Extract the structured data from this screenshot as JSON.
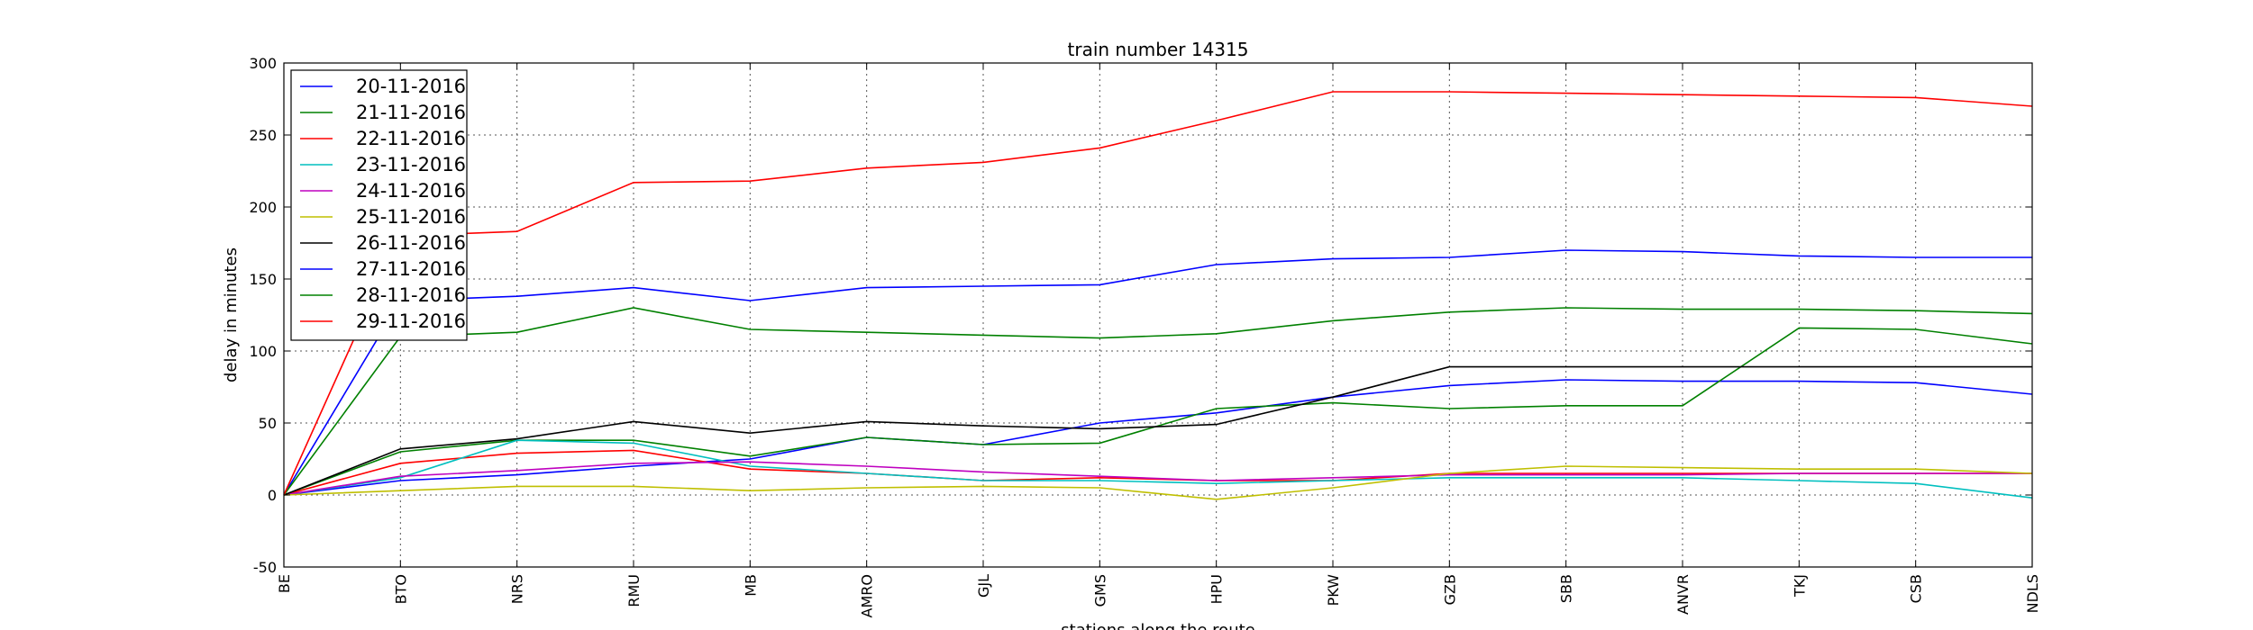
{
  "chart_data": {
    "type": "line",
    "title": "train number 14315",
    "xlabel": "stations along the route",
    "ylabel": "delay in minutes",
    "categories": [
      "BE",
      "BTO",
      "NRS",
      "RMU",
      "MB",
      "AMRO",
      "GJL",
      "GMS",
      "HPU",
      "PKW",
      "GZB",
      "SBB",
      "ANVR",
      "TKJ",
      "CSB",
      "NDLS"
    ],
    "ylim": [
      -50,
      300
    ],
    "yticks": [
      -50,
      0,
      50,
      100,
      150,
      200,
      250,
      300
    ],
    "grid": true,
    "legend_position": "top-left",
    "series": [
      {
        "name": "20-11-2016",
        "color": "#0000ff",
        "values": [
          0,
          10,
          14,
          20,
          25,
          40,
          35,
          50,
          57,
          68,
          76,
          80,
          79,
          79,
          78,
          70
        ]
      },
      {
        "name": "21-11-2016",
        "color": "#008000",
        "values": [
          0,
          30,
          38,
          38,
          27,
          40,
          35,
          36,
          60,
          64,
          60,
          62,
          62,
          116,
          115,
          105
        ]
      },
      {
        "name": "22-11-2016",
        "color": "#ff0000",
        "values": [
          0,
          22,
          29,
          31,
          18,
          15,
          10,
          12,
          10,
          10,
          15,
          15,
          15,
          15,
          15,
          15
        ]
      },
      {
        "name": "23-11-2016",
        "color": "#00bfbf",
        "values": [
          0,
          12,
          38,
          36,
          20,
          15,
          10,
          10,
          8,
          10,
          12,
          12,
          12,
          10,
          8,
          -2
        ]
      },
      {
        "name": "24-11-2016",
        "color": "#bf00bf",
        "values": [
          0,
          13,
          17,
          22,
          23,
          20,
          16,
          13,
          10,
          12,
          14,
          14,
          14,
          15,
          15,
          15
        ]
      },
      {
        "name": "25-11-2016",
        "color": "#bfbf00",
        "values": [
          0,
          3,
          6,
          6,
          3,
          5,
          6,
          5,
          -3,
          5,
          15,
          20,
          19,
          18,
          18,
          15
        ]
      },
      {
        "name": "26-11-2016",
        "color": "#000000",
        "values": [
          0,
          32,
          39,
          51,
          43,
          51,
          48,
          46,
          49,
          68,
          89,
          89,
          89,
          89,
          89,
          89
        ]
      },
      {
        "name": "27-11-2016",
        "color": "#0000ff",
        "values": [
          0,
          135,
          138,
          144,
          135,
          144,
          145,
          146,
          160,
          164,
          165,
          170,
          169,
          166,
          165,
          165
        ]
      },
      {
        "name": "28-11-2016",
        "color": "#008000",
        "values": [
          0,
          110,
          113,
          130,
          115,
          113,
          111,
          109,
          112,
          121,
          127,
          130,
          129,
          129,
          128,
          126
        ]
      },
      {
        "name": "29-11-2016",
        "color": "#ff0000",
        "values": [
          0,
          180,
          183,
          217,
          218,
          227,
          231,
          241,
          260,
          280,
          280,
          279,
          278,
          277,
          276,
          270
        ]
      }
    ]
  }
}
